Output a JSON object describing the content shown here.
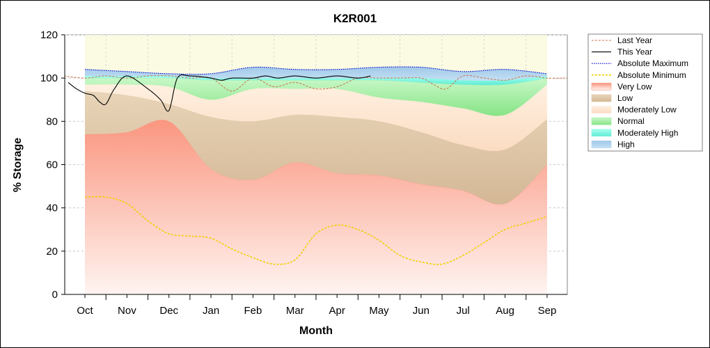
{
  "chart_data": {
    "type": "area",
    "title": "K2R001",
    "xlabel": "Month",
    "ylabel": "% Storage",
    "ylim": [
      0,
      120
    ],
    "yticks": [
      0,
      20,
      40,
      60,
      80,
      100,
      120
    ],
    "categories": [
      "Oct",
      "Nov",
      "Dec",
      "Jan",
      "Feb",
      "Mar",
      "Apr",
      "May",
      "Jun",
      "Jul",
      "Aug",
      "Sep"
    ],
    "grid": true,
    "legend_position": "right",
    "bands": [
      {
        "name": "Very Low",
        "color": "#fa9680",
        "lower": [
          0,
          0,
          0,
          0,
          0,
          0,
          0,
          0,
          0,
          0,
          0,
          0
        ],
        "upper": [
          74,
          75,
          80,
          58,
          53,
          61,
          56,
          55,
          51,
          48,
          42,
          60
        ]
      },
      {
        "name": "Low",
        "color": "#dcc3a0",
        "lower": [
          74,
          75,
          80,
          58,
          53,
          61,
          56,
          55,
          51,
          48,
          42,
          60
        ],
        "upper": [
          94,
          92,
          88,
          82,
          80,
          83,
          82,
          80,
          75,
          69,
          67,
          81
        ]
      },
      {
        "name": "Moderately Low",
        "color": "#fce4cf",
        "lower": [
          94,
          92,
          88,
          82,
          80,
          83,
          82,
          80,
          75,
          69,
          67,
          81
        ],
        "upper": [
          97,
          97,
          96,
          90,
          95,
          95,
          95,
          91,
          89,
          86,
          83,
          97
        ]
      },
      {
        "name": "Normal",
        "color": "#98ec98",
        "lower": [
          97,
          97,
          96,
          90,
          95,
          95,
          95,
          91,
          89,
          86,
          83,
          97
        ],
        "upper": [
          100,
          100,
          100,
          99,
          99,
          99,
          99,
          99,
          98,
          97,
          97,
          100
        ]
      },
      {
        "name": "Moderately High",
        "color": "#80f5e0",
        "lower": [
          100,
          100,
          100,
          99,
          99,
          99,
          99,
          99,
          98,
          97,
          97,
          100
        ],
        "upper": [
          101,
          101,
          101,
          100,
          100,
          100,
          100,
          100,
          100,
          99,
          99,
          101
        ]
      },
      {
        "name": "High",
        "color": "#a8d0ee",
        "lower": [
          101,
          101,
          101,
          100,
          100,
          100,
          100,
          100,
          100,
          99,
          99,
          101
        ],
        "upper": [
          104,
          103,
          102,
          102,
          105,
          104,
          104,
          105,
          105,
          103,
          104,
          102
        ]
      }
    ],
    "series": [
      {
        "name": "Last Year",
        "color": "#c87850",
        "style": "dash",
        "x": [
          -0.5,
          0,
          0.5,
          1,
          1.5,
          2,
          2.5,
          3,
          3.5,
          4,
          4.5,
          5,
          5.5,
          6,
          6.5,
          7,
          7.5,
          8,
          8.3,
          8.6,
          9,
          9.5,
          10,
          10.5,
          11,
          11.5
        ],
        "y": [
          101,
          100,
          101,
          100,
          101,
          101,
          100,
          100,
          94,
          100,
          96,
          98,
          95,
          96,
          100,
          100,
          100,
          100,
          97,
          95,
          101,
          100,
          99,
          101,
          100,
          100
        ]
      },
      {
        "name": "This Year",
        "color": "#000000",
        "style": "solid",
        "x": [
          -0.4,
          -0.2,
          0,
          0.2,
          0.35,
          0.5,
          0.7,
          1,
          1.5,
          1.8,
          2,
          2.2,
          2.5,
          3,
          3.25,
          3.5,
          4,
          4.3,
          4.6,
          5,
          5.5,
          6,
          6.5,
          6.8
        ],
        "y": [
          98,
          95,
          93,
          92,
          89,
          88,
          95,
          101,
          95,
          90,
          85,
          100,
          101,
          100,
          99,
          100,
          100,
          101,
          100,
          101,
          100,
          101,
          100,
          101
        ]
      },
      {
        "name": "Absolute Maximum",
        "color": "#0000c8",
        "style": "dot",
        "x": [
          0,
          1,
          2,
          3,
          4,
          5,
          6,
          7,
          8,
          9,
          10,
          11
        ],
        "y": [
          104,
          103,
          102,
          102,
          105,
          104,
          104,
          105,
          105,
          103,
          104,
          102
        ]
      },
      {
        "name": "Absolute Minimum",
        "color": "#f0d000",
        "style": "dash",
        "x": [
          0,
          0.5,
          1,
          1.5,
          2,
          2.5,
          3,
          3.5,
          4,
          4.5,
          5,
          5.5,
          6,
          6.5,
          7,
          7.5,
          8,
          8.5,
          9,
          9.5,
          10,
          10.5,
          11
        ],
        "y": [
          45,
          45,
          42,
          34,
          28,
          27,
          26,
          21,
          17,
          14,
          16,
          28,
          32,
          30,
          25,
          18,
          15,
          14,
          18,
          24,
          30,
          33,
          36
        ]
      }
    ],
    "legend": [
      {
        "label": "Last Year",
        "kind": "line",
        "color": "#c87850",
        "style": "dash"
      },
      {
        "label": "This Year",
        "kind": "line",
        "color": "#000000",
        "style": "solid"
      },
      {
        "label": "Absolute Maximum",
        "kind": "line",
        "color": "#0000c8",
        "style": "dot"
      },
      {
        "label": "Absolute Minimum",
        "kind": "line",
        "color": "#f0d000",
        "style": "dash"
      },
      {
        "label": "Very Low",
        "kind": "area",
        "color": "#fa9680"
      },
      {
        "label": "Low",
        "kind": "area",
        "color": "#dcc3a0"
      },
      {
        "label": "Moderately Low",
        "kind": "area",
        "color": "#fce4cf"
      },
      {
        "label": "Normal",
        "kind": "area",
        "color": "#98ec98"
      },
      {
        "label": "Moderately High",
        "kind": "area",
        "color": "#80f5e0"
      },
      {
        "label": "High",
        "kind": "area",
        "color": "#a8d0ee"
      }
    ]
  }
}
